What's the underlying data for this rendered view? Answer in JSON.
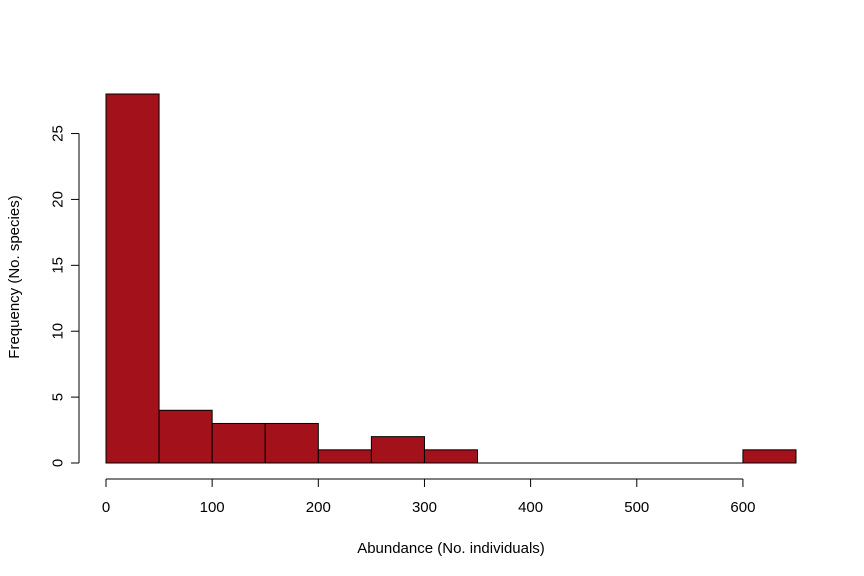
{
  "chart_data": {
    "type": "bar",
    "histogram": true,
    "title": "",
    "xlabel": "Abundance (No. individuals)",
    "ylabel": "Frequency (No. species)",
    "bins": [
      [
        0,
        50
      ],
      [
        50,
        100
      ],
      [
        100,
        150
      ],
      [
        150,
        200
      ],
      [
        200,
        250
      ],
      [
        250,
        300
      ],
      [
        300,
        350
      ],
      [
        350,
        400
      ],
      [
        400,
        450
      ],
      [
        450,
        500
      ],
      [
        500,
        550
      ],
      [
        550,
        600
      ],
      [
        600,
        650
      ]
    ],
    "values": [
      28,
      4,
      3,
      3,
      1,
      2,
      1,
      0,
      0,
      0,
      0,
      0,
      1
    ],
    "xlim": [
      0,
      650
    ],
    "ylim": [
      0,
      28
    ],
    "xticks": [
      0,
      100,
      200,
      300,
      400,
      500,
      600
    ],
    "xtick_labels": [
      "0",
      "100",
      "200",
      "300",
      "400",
      "500",
      "600"
    ],
    "yticks": [
      0,
      5,
      10,
      15,
      20,
      25
    ],
    "ytick_labels": [
      "0",
      "5",
      "10",
      "15",
      "20",
      "25"
    ],
    "grid": false,
    "legend": "none",
    "bar_color": "#a3121b",
    "edge_color": "#000000"
  }
}
